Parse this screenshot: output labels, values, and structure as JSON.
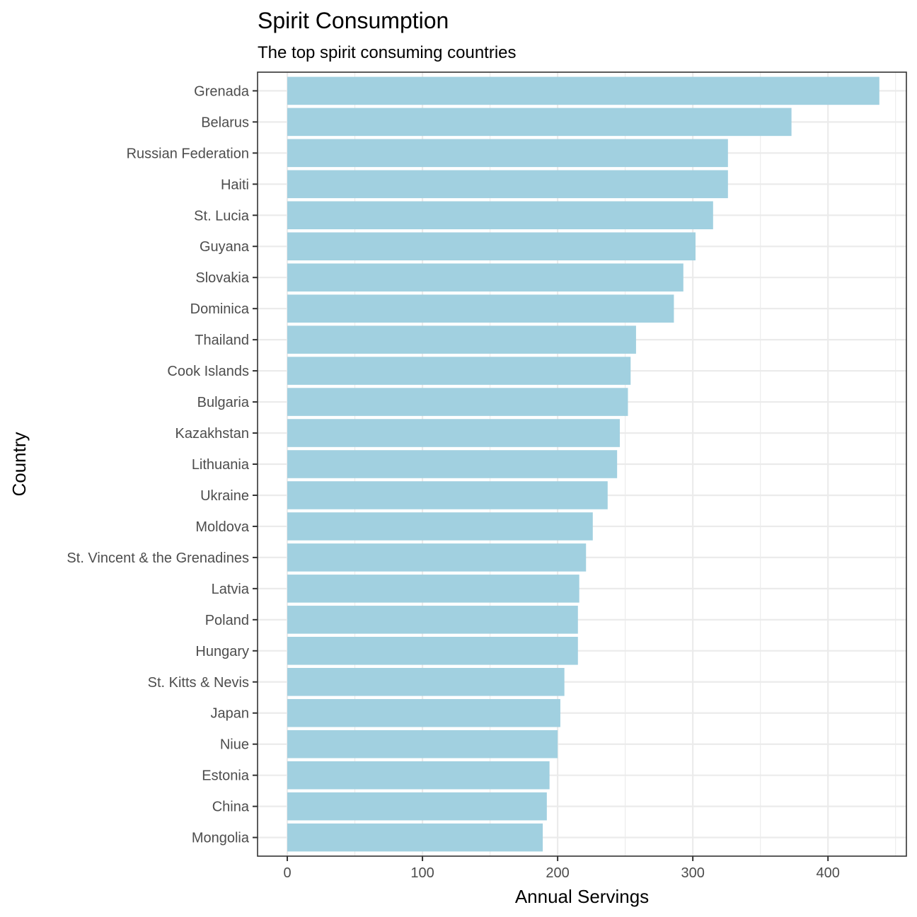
{
  "chart_data": {
    "type": "bar",
    "orientation": "horizontal",
    "title": "Spirit Consumption",
    "subtitle": "The top spirit consuming countries",
    "xlabel": "Annual Servings",
    "ylabel": "Country",
    "xlim": [
      -22,
      458
    ],
    "xticks": [
      0,
      100,
      200,
      300,
      400
    ],
    "x_minor": [
      50,
      150,
      250,
      350,
      450
    ],
    "grid": true,
    "bar_color": "#a1d0e0",
    "categories": [
      "Grenada",
      "Belarus",
      "Russian Federation",
      "Haiti",
      "St. Lucia",
      "Guyana",
      "Slovakia",
      "Dominica",
      "Thailand",
      "Cook Islands",
      "Bulgaria",
      "Kazakhstan",
      "Lithuania",
      "Ukraine",
      "Moldova",
      "St. Vincent & the Grenadines",
      "Latvia",
      "Poland",
      "Hungary",
      "St. Kitts & Nevis",
      "Japan",
      "Niue",
      "Estonia",
      "China",
      "Mongolia"
    ],
    "values": [
      438,
      373,
      326,
      326,
      315,
      302,
      293,
      286,
      258,
      254,
      252,
      246,
      244,
      237,
      226,
      221,
      216,
      215,
      215,
      205,
      202,
      200,
      194,
      192,
      189
    ]
  }
}
